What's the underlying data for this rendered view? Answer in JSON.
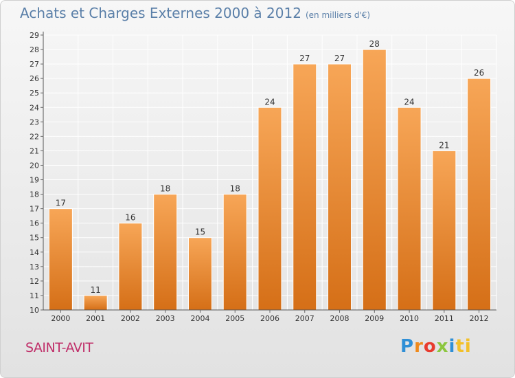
{
  "header": {
    "title": "Achats et Charges Externes 2000 à 2012",
    "unit": "(en milliers d'€)"
  },
  "footer": {
    "city": "SAINT-AVIT",
    "brand_letters": [
      "P",
      "r",
      "o",
      "x",
      "i",
      "ti"
    ]
  },
  "colors": {
    "bar_top": "#f7a657",
    "bar_bottom": "#d56f17",
    "title": "#5a7fa8",
    "city": "#c0306a"
  },
  "chart_data": {
    "type": "bar",
    "title": "Achats et Charges Externes 2000 à 2012",
    "subtitle": "(en milliers d'€)",
    "xlabel": "",
    "ylabel": "",
    "categories": [
      "2000",
      "2001",
      "2002",
      "2003",
      "2004",
      "2005",
      "2006",
      "2007",
      "2008",
      "2009",
      "2010",
      "2011",
      "2012"
    ],
    "values": [
      17,
      11,
      16,
      18,
      15,
      18,
      24,
      27,
      27,
      28,
      24,
      21,
      26
    ],
    "ylim": [
      10,
      29
    ],
    "yticks": [
      10,
      11,
      12,
      13,
      14,
      15,
      16,
      17,
      18,
      19,
      20,
      21,
      22,
      23,
      24,
      25,
      26,
      27,
      28,
      29
    ],
    "grid": true,
    "legend": "none"
  }
}
